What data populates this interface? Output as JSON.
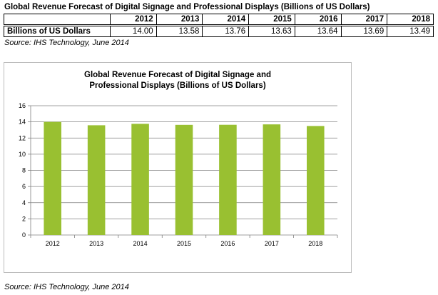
{
  "header": {
    "title": "Global Revenue Forecast of Digital Signage and Professional Displays (Billions of US Dollars)"
  },
  "table": {
    "years": [
      "2012",
      "2013",
      "2014",
      "2015",
      "2016",
      "2017",
      "2018"
    ],
    "row_label": "Billions of US Dollars",
    "values": [
      "14.00",
      "13.58",
      "13.76",
      "13.63",
      "13.64",
      "13.69",
      "13.49"
    ]
  },
  "source_top": "Source: IHS Technology, June 2014",
  "source_bottom": "Source: IHS Technology, June 2014",
  "chart_data": {
    "type": "bar",
    "title_lines": [
      "Global  Revenue Forecast of Digital  Signage and",
      "Professional Displays  (Billions  of US Dollars)"
    ],
    "categories": [
      "2012",
      "2013",
      "2014",
      "2015",
      "2016",
      "2017",
      "2018"
    ],
    "values": [
      14.0,
      13.58,
      13.76,
      13.63,
      13.64,
      13.69,
      13.49
    ],
    "ylim": [
      0,
      16
    ],
    "yticks": [
      0,
      2,
      4,
      6,
      8,
      10,
      12,
      14,
      16
    ],
    "grid": true,
    "legend": false,
    "bar_color": "#99c031",
    "grid_color": "#808080"
  }
}
